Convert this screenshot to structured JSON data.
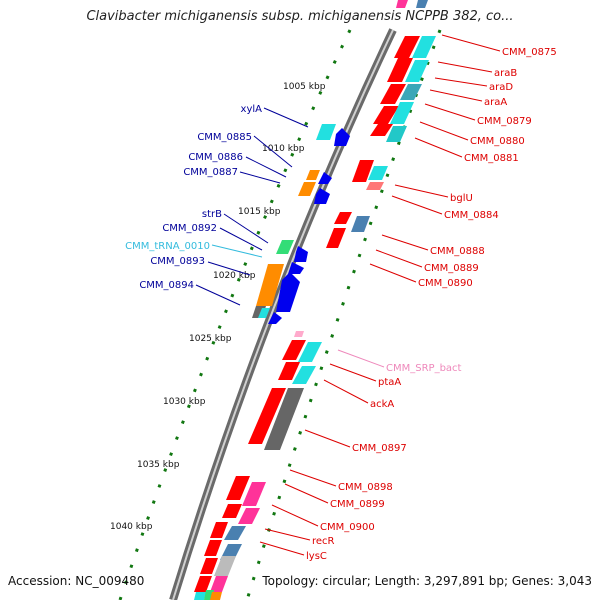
{
  "title": "Clavibacter michiganensis subsp. michiganensis NCPPB 382, co...",
  "accession": "Accession: NC_009480",
  "topology": "Topology: circular; Length: 3,297,891 bp; Genes: 3,043",
  "colors": {
    "cds": "#ff0000",
    "cds_dark": "#cc0000",
    "cyan": "#22e0e0",
    "steel": "#4a80b0",
    "orange": "#ff8c00",
    "blue": "#0000ee",
    "green": "#33dd77",
    "magenta": "#ff3399",
    "gray": "#666666",
    "light_gray": "#bbbbbb",
    "tick_green": "#117711",
    "label_red": "#dd0000",
    "label_blue": "#000099",
    "label_cyan": "#33bbdd",
    "label_pink": "#ee88bb"
  },
  "ticks": [
    "1005 kbp",
    "1010 kbp",
    "1015 kbp",
    "1020 kbp",
    "1025 kbp",
    "1030 kbp",
    "1035 kbp",
    "1040 kbp"
  ],
  "right_labels": [
    "CMM_0875",
    "araB",
    "araD",
    "araA",
    "CMM_0879",
    "CMM_0880",
    "CMM_0881",
    "bglU",
    "CMM_0884",
    "CMM_0888",
    "CMM_0889",
    "CMM_0890",
    "CMM_SRP_bact",
    "ptaA",
    "ackA",
    "CMM_0897",
    "CMM_0898",
    "CMM_0899",
    "CMM_0900",
    "recR",
    "lysC"
  ],
  "left_labels": [
    "xylA",
    "CMM_0885",
    "CMM_0886",
    "CMM_0887",
    "strB",
    "CMM_0892",
    "CMM_tRNA_0010",
    "CMM_0893",
    "CMM_0894"
  ]
}
